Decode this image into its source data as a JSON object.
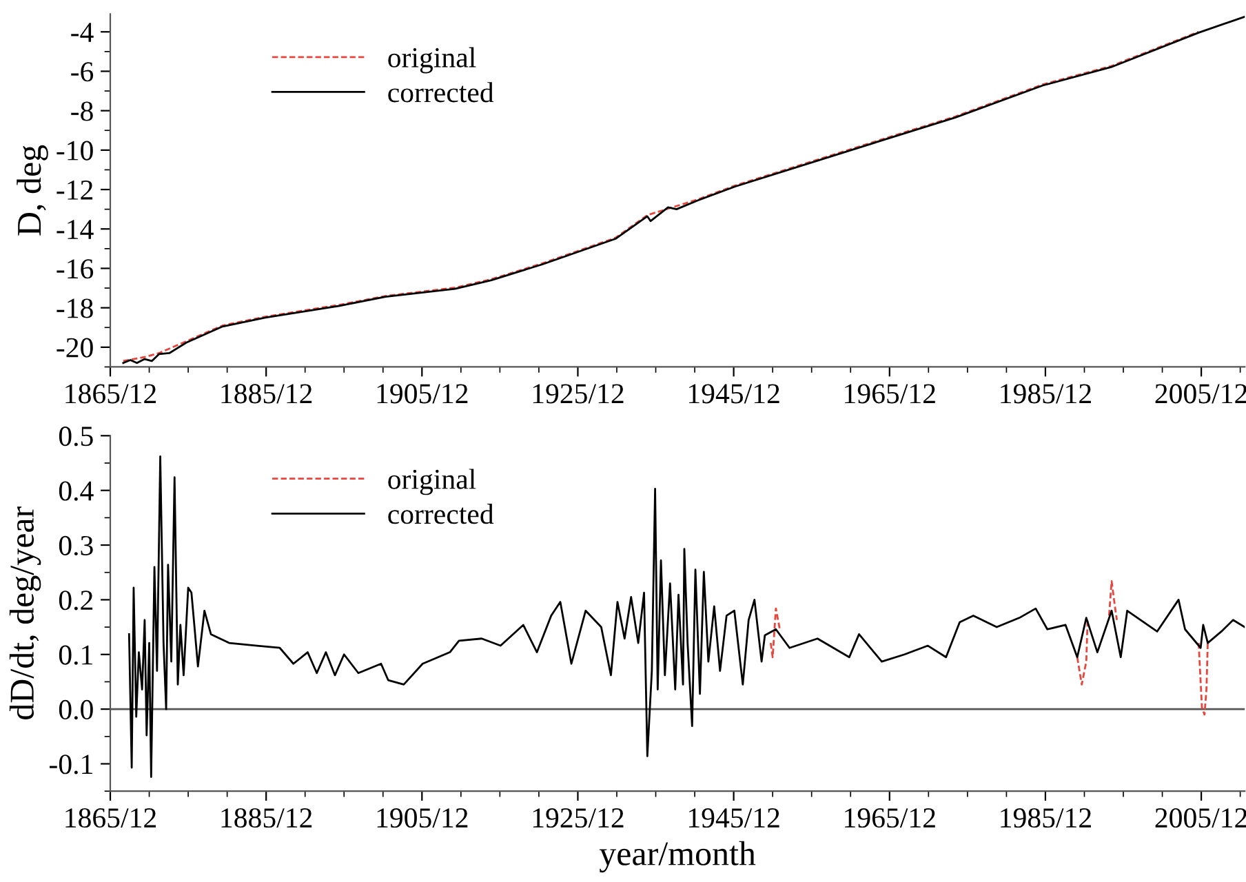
{
  "chart_data": [
    {
      "type": "line",
      "ylabel": "D, deg",
      "legend": "top left",
      "grid": false,
      "xlim": [
        "1865-12",
        "2011-07"
      ],
      "ylim": [
        -21,
        -3.1
      ],
      "xticks": [
        {
          "value": "1865-12",
          "label": "1865/12"
        },
        {
          "value": "1870-12",
          "label": null
        },
        {
          "value": "1875-12",
          "label": null
        },
        {
          "value": "1880-12",
          "label": null
        },
        {
          "value": "1885-12",
          "label": "1885/12"
        },
        {
          "value": "1890-12",
          "label": null
        },
        {
          "value": "1895-12",
          "label": null
        },
        {
          "value": "1900-12",
          "label": null
        },
        {
          "value": "1905-12",
          "label": "1905/12"
        },
        {
          "value": "1910-12",
          "label": null
        },
        {
          "value": "1915-12",
          "label": null
        },
        {
          "value": "1920-12",
          "label": null
        },
        {
          "value": "1925-12",
          "label": "1925/12"
        },
        {
          "value": "1930-12",
          "label": null
        },
        {
          "value": "1935-12",
          "label": null
        },
        {
          "value": "1940-12",
          "label": null
        },
        {
          "value": "1945-12",
          "label": "1945/12"
        },
        {
          "value": "1950-12",
          "label": null
        },
        {
          "value": "1955-12",
          "label": null
        },
        {
          "value": "1960-12",
          "label": null
        },
        {
          "value": "1965-12",
          "label": "1965/12"
        },
        {
          "value": "1970-12",
          "label": null
        },
        {
          "value": "1975-12",
          "label": null
        },
        {
          "value": "1980-12",
          "label": null
        },
        {
          "value": "1985-12",
          "label": "1985/12"
        },
        {
          "value": "1990-12",
          "label": null
        },
        {
          "value": "1995-12",
          "label": null
        },
        {
          "value": "2000-12",
          "label": null
        },
        {
          "value": "2005-12",
          "label": "2005/12"
        },
        {
          "value": "2010-12",
          "label": null
        }
      ],
      "yticks": [
        -4,
        {
          "value": -5,
          "label": null
        },
        -6,
        {
          "value": -7,
          "label": null
        },
        -8,
        {
          "value": -9,
          "label": null
        },
        -10,
        {
          "value": -11,
          "label": null
        },
        -12,
        {
          "value": -13,
          "label": null
        },
        -14,
        {
          "value": -15,
          "label": null
        },
        -16,
        {
          "value": -17,
          "label": null
        },
        -18,
        {
          "value": -19,
          "label": null
        },
        -20,
        {
          "value": -21,
          "label": null
        }
      ],
      "series": [
        {
          "name": "original",
          "color": "#e8463c",
          "line_style": "dashed",
          "x": [
            "1867-08",
            "1870-05",
            "1872-03",
            "1875-09",
            "1880-05",
            "1885-11",
            "1895-05",
            "1901-04",
            "1910-03",
            "1914-11",
            "1921-05",
            "1930-10",
            "1934-11",
            "1941-05",
            "1946-02",
            "1964-11",
            "1974-05",
            "1985-08",
            "1994-05",
            "2005-08"
          ],
          "values": [
            -20.7,
            -20.5,
            -20.3,
            -19.7,
            -18.9,
            -18.45,
            -17.85,
            -17.4,
            -16.98,
            -16.55,
            -15.75,
            -14.45,
            -13.3,
            -12.5,
            -11.8,
            -9.47,
            -8.3,
            -6.67,
            -5.74,
            -4.0
          ]
        },
        {
          "name": "corrected",
          "color": "#000000",
          "line_style": "solid",
          "x": [
            "1867-08",
            "1868-07",
            "1869-05",
            "1870-05",
            "1871-04",
            "1872-03",
            "1873-07",
            "1875-09",
            "1880-05",
            "1885-11",
            "1895-05",
            "1901-04",
            "1910-03",
            "1914-11",
            "1921-05",
            "1930-10",
            "1934-11",
            "1935-04",
            "1937-07",
            "1938-08",
            "1941-05",
            "1946-02",
            "1964-11",
            "1974-05",
            "1985-08",
            "1994-05",
            "2005-08",
            "2011-07"
          ],
          "values": [
            -20.8,
            -20.65,
            -20.8,
            -20.6,
            -20.7,
            -20.35,
            -20.3,
            -19.77,
            -18.95,
            -18.5,
            -17.9,
            -17.44,
            -17.04,
            -16.6,
            -15.8,
            -14.5,
            -13.36,
            -13.6,
            -12.9,
            -13.0,
            -12.55,
            -11.85,
            -9.52,
            -8.35,
            -6.72,
            -5.79,
            -4.04,
            -3.23
          ]
        }
      ]
    },
    {
      "type": "line",
      "xlabel": "year/month",
      "ylabel": "dD/dt, deg/year",
      "legend": "top left",
      "grid": false,
      "xlim": [
        "1865-12",
        "2011-07"
      ],
      "ylim": [
        -0.15,
        0.5
      ],
      "xticks": [
        {
          "value": "1865-12",
          "label": "1865/12"
        },
        {
          "value": "1870-12",
          "label": null
        },
        {
          "value": "1875-12",
          "label": null
        },
        {
          "value": "1880-12",
          "label": null
        },
        {
          "value": "1885-12",
          "label": "1885/12"
        },
        {
          "value": "1890-12",
          "label": null
        },
        {
          "value": "1895-12",
          "label": null
        },
        {
          "value": "1900-12",
          "label": null
        },
        {
          "value": "1905-12",
          "label": "1905/12"
        },
        {
          "value": "1910-12",
          "label": null
        },
        {
          "value": "1915-12",
          "label": null
        },
        {
          "value": "1920-12",
          "label": null
        },
        {
          "value": "1925-12",
          "label": "1925/12"
        },
        {
          "value": "1930-12",
          "label": null
        },
        {
          "value": "1935-12",
          "label": null
        },
        {
          "value": "1940-12",
          "label": null
        },
        {
          "value": "1945-12",
          "label": "1945/12"
        },
        {
          "value": "1950-12",
          "label": null
        },
        {
          "value": "1955-12",
          "label": null
        },
        {
          "value": "1960-12",
          "label": null
        },
        {
          "value": "1965-12",
          "label": "1965/12"
        },
        {
          "value": "1970-12",
          "label": null
        },
        {
          "value": "1975-12",
          "label": null
        },
        {
          "value": "1980-12",
          "label": null
        },
        {
          "value": "1985-12",
          "label": "1985/12"
        },
        {
          "value": "1990-12",
          "label": null
        },
        {
          "value": "1995-12",
          "label": null
        },
        {
          "value": "2000-12",
          "label": null
        },
        {
          "value": "2005-12",
          "label": "2005/12"
        },
        {
          "value": "2010-12",
          "label": null
        }
      ],
      "yticks": [
        {
          "value": -0.15,
          "label": null
        },
        {
          "value": -0.1,
          "label": "-0.1"
        },
        {
          "value": -0.05,
          "label": null
        },
        {
          "value": 0,
          "label": "0.0"
        },
        {
          "value": 0.05,
          "label": null
        },
        {
          "value": 0.1,
          "label": "0.1"
        },
        {
          "value": 0.15,
          "label": null
        },
        {
          "value": 0.2,
          "label": "0.2"
        },
        {
          "value": 0.25,
          "label": null
        },
        {
          "value": 0.3,
          "label": "0.3"
        },
        {
          "value": 0.35,
          "label": null
        },
        {
          "value": 0.4,
          "label": "0.4"
        },
        {
          "value": 0.45,
          "label": null
        },
        {
          "value": 0.5,
          "label": "0.5"
        }
      ],
      "ref_lines": [
        {
          "axis": "y",
          "value": 0,
          "color": "#555555",
          "line_style": "solid"
        }
      ],
      "series": [
        {
          "name": "original",
          "color": "#e8463c",
          "line_style": "dashed",
          "x": [
            "1950-09",
            "1950-12",
            "1951-05",
            "1951-11",
            "1960-01",
            "1990-01",
            "1990-08",
            "1991-03",
            "1991-05",
            "1993-01",
            "1994-02",
            "1994-06",
            "1994-11",
            "1995-02",
            "2000-01",
            "2005-08",
            "2006-01",
            "2006-05",
            "2006-08",
            "2006-10"
          ],
          "values": [
            0.121,
            0.095,
            0.184,
            0.146,
            null,
            0.095,
            0.045,
            0.087,
            0.163,
            null,
            0.171,
            0.234,
            0.188,
            0.163,
            null,
            0.121,
            0.003,
            -0.01,
            0.036,
            0.121
          ]
        },
        {
          "name": "corrected",
          "color": "#000000",
          "line_style": "solid",
          "x": [
            "1868-05",
            "1868-09",
            "1868-12",
            "1869-04",
            "1869-08",
            "1870-01",
            "1870-05",
            "1870-08",
            "1870-12",
            "1871-03",
            "1871-08",
            "1871-12",
            "1872-05",
            "1872-10",
            "1873-02",
            "1873-05",
            "1873-10",
            "1874-03",
            "1874-08",
            "1874-12",
            "1875-05",
            "1875-12",
            "1876-05",
            "1876-10",
            "1877-03",
            "1878-01",
            "1878-11",
            "1881-03",
            "1884-10",
            "1887-09",
            "1889-06",
            "1891-04",
            "1892-06",
            "1893-08",
            "1894-10",
            "1895-12",
            "1897-10",
            "1900-09",
            "1901-08",
            "1903-08",
            "1906-01",
            "1909-07",
            "1910-09",
            "1913-08",
            "1916-01",
            "1918-12",
            "1920-09",
            "1922-07",
            "1923-09",
            "1925-02",
            "1926-12",
            "1928-12",
            "1930-03",
            "1931-01",
            "1931-12",
            "1932-10",
            "1933-09",
            "1934-06",
            "1934-11",
            "1935-06",
            "1935-11",
            "1936-03",
            "1936-08",
            "1937-02",
            "1937-10",
            "1938-06",
            "1938-11",
            "1939-06",
            "1939-08",
            "1940-01",
            "1940-08",
            "1941-01",
            "1941-08",
            "1942-02",
            "1942-09",
            "1943-06",
            "1944-03",
            "1945-01",
            "1946-01",
            "1947-02",
            "1947-11",
            "1948-08",
            "1949-07",
            "1949-12",
            "1951-05",
            "1953-02",
            "1956-09",
            "1960-10",
            "1962-01",
            "1964-12",
            "1967-11",
            "1970-11",
            "1973-03",
            "1974-12",
            "1976-09",
            "1979-09",
            "1982-08",
            "1984-09",
            "1986-03",
            "1988-07",
            "1990-01",
            "1991-03",
            "1992-08",
            "1994-06",
            "1995-08",
            "1996-06",
            "2000-04",
            "2003-01",
            "2003-11",
            "2005-11",
            "2006-03",
            "2006-10",
            "2008-07",
            "2010-01",
            "2011-07"
          ],
          "values": [
            0.137,
            -0.107,
            0.222,
            -0.014,
            0.104,
            0.036,
            0.163,
            -0.048,
            0.121,
            -0.124,
            0.26,
            0.07,
            0.462,
            0.121,
            0.0,
            0.264,
            0.087,
            0.424,
            0.045,
            0.154,
            0.062,
            0.222,
            0.213,
            0.146,
            0.078,
            0.18,
            0.137,
            0.121,
            0.116,
            0.112,
            0.083,
            0.104,
            0.066,
            0.104,
            0.062,
            0.1,
            0.066,
            0.083,
            0.053,
            0.045,
            0.083,
            0.104,
            0.125,
            0.129,
            0.116,
            0.154,
            0.104,
            0.171,
            0.196,
            0.083,
            0.18,
            0.15,
            0.062,
            0.196,
            0.129,
            0.205,
            0.121,
            0.213,
            -0.086,
            0.07,
            0.403,
            0.036,
            0.272,
            0.062,
            0.23,
            0.036,
            0.209,
            0.045,
            0.293,
            0.121,
            -0.031,
            0.255,
            0.028,
            0.251,
            0.087,
            0.188,
            0.07,
            0.171,
            0.18,
            0.045,
            0.163,
            0.2,
            0.087,
            0.135,
            0.146,
            0.112,
            0.129,
            0.095,
            0.137,
            0.087,
            0.1,
            0.116,
            0.095,
            0.159,
            0.171,
            0.15,
            0.167,
            0.184,
            0.146,
            0.154,
            0.095,
            0.167,
            0.104,
            0.18,
            0.095,
            0.18,
            0.142,
            0.2,
            0.146,
            0.112,
            0.154,
            0.121,
            0.142,
            0.163,
            0.15
          ]
        }
      ]
    }
  ]
}
